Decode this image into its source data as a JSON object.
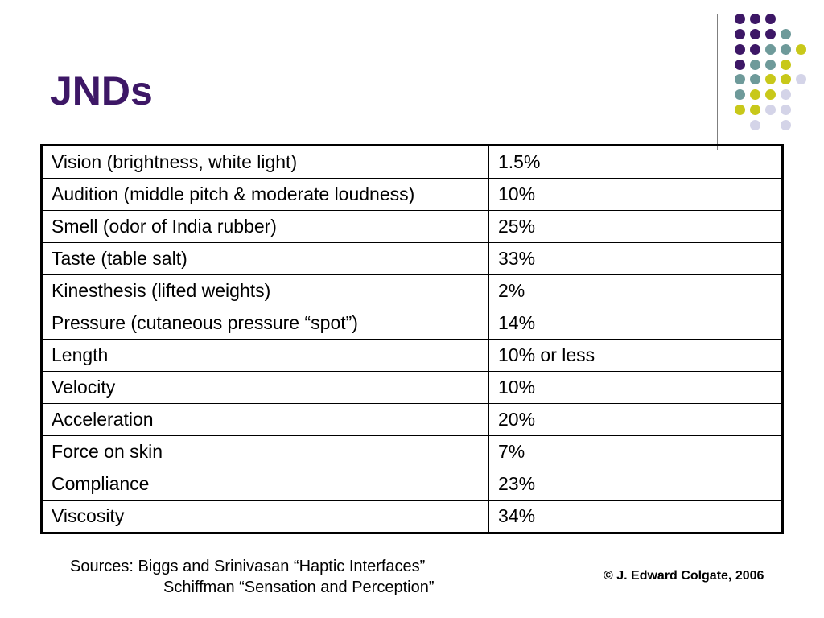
{
  "slide": {
    "title": "JNDs",
    "colors": {
      "title": "#3d1766",
      "dot_purple": "#3d1766",
      "dot_teal": "#6e9a9a",
      "dot_yellow": "#c8c81a",
      "dot_lavender": "#d4d4e8"
    }
  },
  "table": {
    "rows": [
      {
        "label": "Vision (brightness, white light)",
        "value": "1.5%"
      },
      {
        "label": "Audition (middle pitch & moderate loudness)",
        "value": "10%"
      },
      {
        "label": "Smell (odor of India rubber)",
        "value": "25%"
      },
      {
        "label": "Taste (table salt)",
        "value": "33%"
      },
      {
        "label": "Kinesthesis (lifted weights)",
        "value": "2%"
      },
      {
        "label": "Pressure (cutaneous pressure “spot”)",
        "value": "14%"
      },
      {
        "label": "Length",
        "value": "10% or less"
      },
      {
        "label": "Velocity",
        "value": "10%"
      },
      {
        "label": "Acceleration",
        "value": "20%"
      },
      {
        "label": "Force on skin",
        "value": "7%"
      },
      {
        "label": "Compliance",
        "value": "23%"
      },
      {
        "label": "Viscosity",
        "value": "34%"
      }
    ]
  },
  "footer": {
    "sources_line1": "Sources:  Biggs and Srinivasan “Haptic Interfaces”",
    "sources_line2": "Schiffman “Sensation and Perception”",
    "copyright": "© J. Edward Colgate, 2006"
  }
}
